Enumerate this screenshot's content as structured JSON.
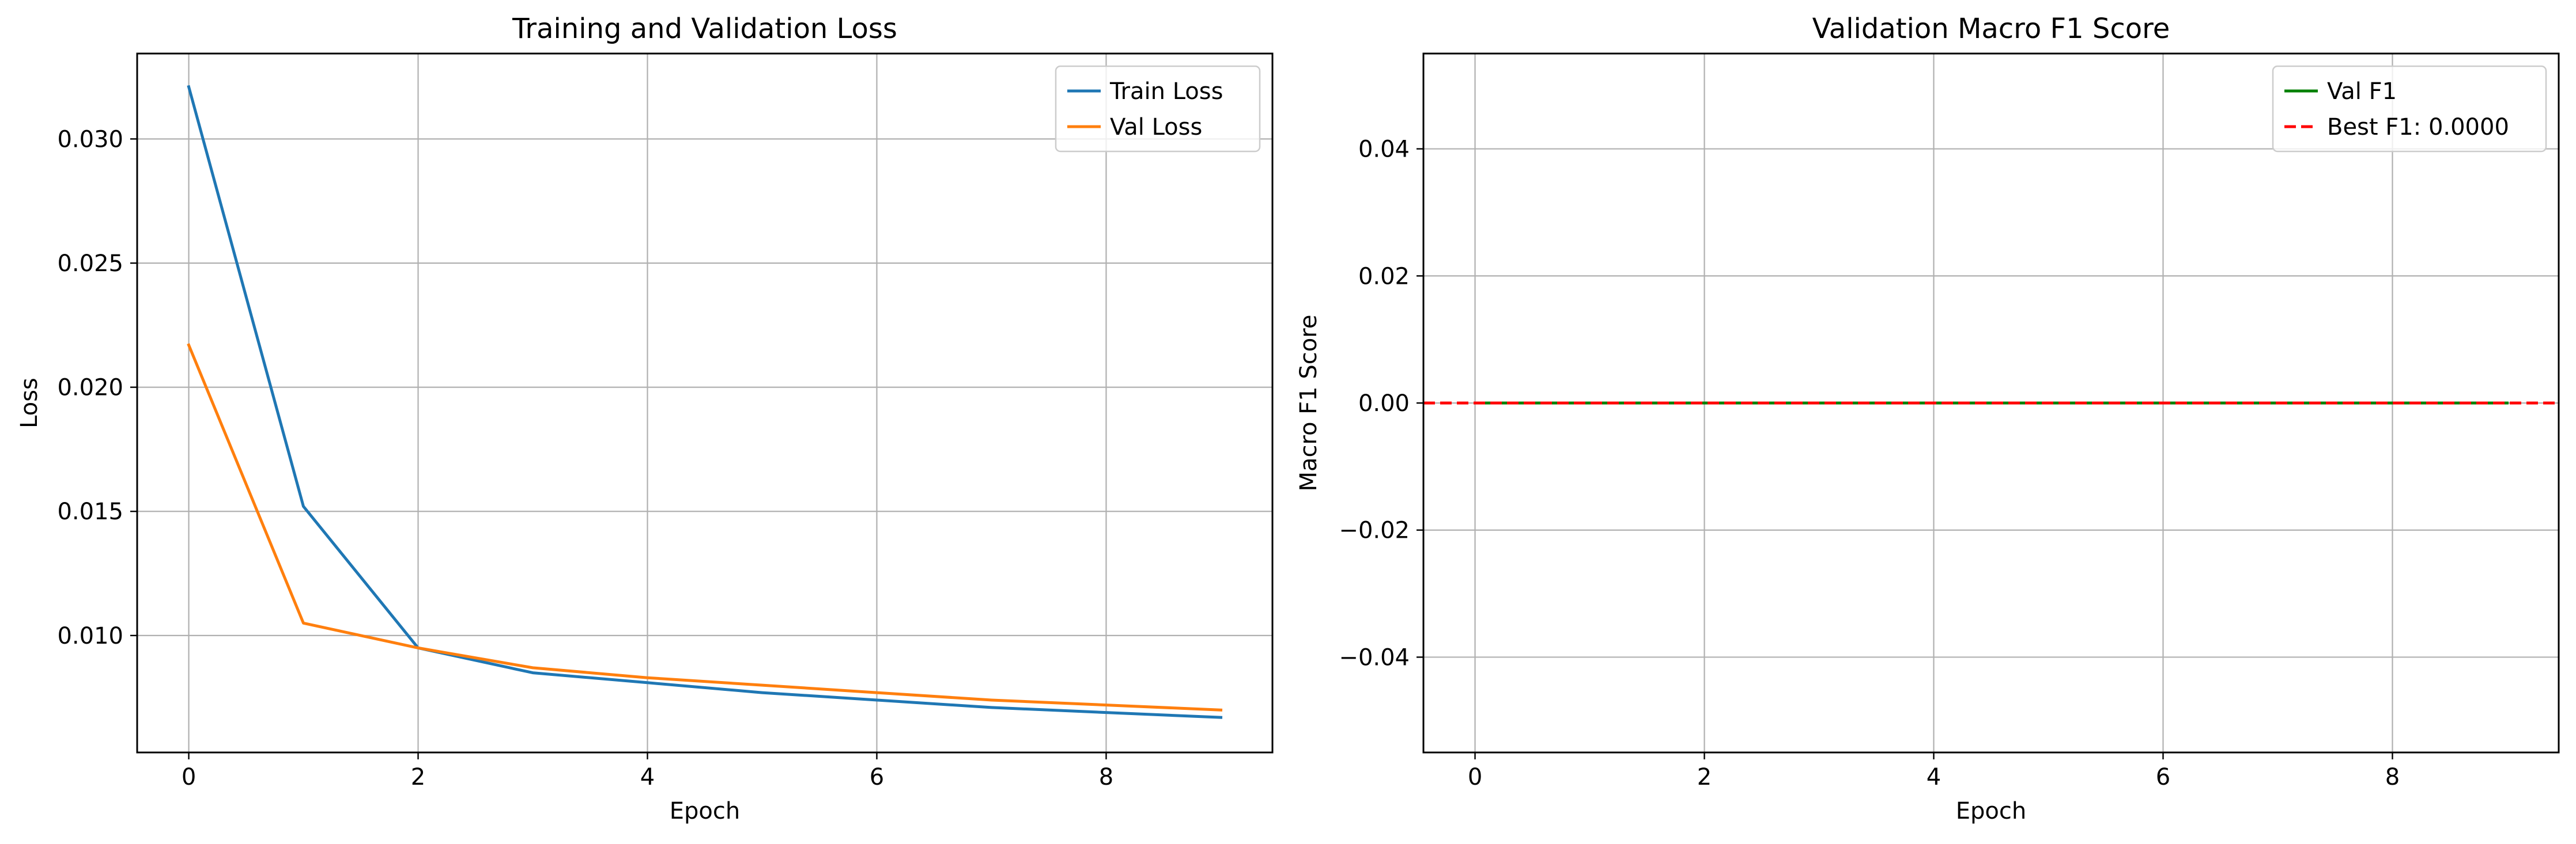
{
  "chart_data": [
    {
      "type": "line",
      "title": "Training and Validation Loss",
      "xlabel": "Epoch",
      "ylabel": "Loss",
      "xlim": [
        -0.45,
        9.45
      ],
      "ylim": [
        0.00529,
        0.03344
      ],
      "xticks": [
        0,
        2,
        4,
        6,
        8
      ],
      "yticks": [
        0.01,
        0.015,
        0.02,
        0.025,
        0.03
      ],
      "ytick_decimals": 3,
      "grid": true,
      "legend_position": "upper-right",
      "x": [
        0,
        1,
        2,
        3,
        4,
        5,
        6,
        7,
        8,
        9
      ],
      "series": [
        {
          "name": "Train Loss",
          "color": "#1f77b4",
          "dash": "solid",
          "values": [
            0.0321,
            0.0152,
            0.0095,
            0.0085,
            0.0081,
            0.0077,
            0.0074,
            0.0071,
            0.0069,
            0.0067
          ]
        },
        {
          "name": "Val Loss",
          "color": "#ff7f0e",
          "dash": "solid",
          "values": [
            0.0217,
            0.0105,
            0.0095,
            0.0087,
            0.0083,
            0.008,
            0.0077,
            0.0074,
            0.0072,
            0.007
          ]
        }
      ]
    },
    {
      "type": "line",
      "title": "Validation Macro F1 Score",
      "xlabel": "Epoch",
      "ylabel": "Macro F1 Score",
      "xlim": [
        -0.45,
        9.45
      ],
      "ylim": [
        -0.055,
        0.055
      ],
      "xticks": [
        0,
        2,
        4,
        6,
        8
      ],
      "yticks": [
        -0.04,
        -0.02,
        0.0,
        0.02,
        0.04
      ],
      "ytick_decimals": 2,
      "grid": true,
      "legend_position": "upper-right",
      "x": [
        0,
        1,
        2,
        3,
        4,
        5,
        6,
        7,
        8,
        9
      ],
      "series": [
        {
          "name": "Val F1",
          "color": "#008000",
          "dash": "solid",
          "values": [
            0,
            0,
            0,
            0,
            0,
            0,
            0,
            0,
            0,
            0
          ]
        }
      ],
      "hlines": [
        {
          "name": "Best F1: 0.0000",
          "color": "#ff0000",
          "dash": "dashed",
          "y": 0.0
        }
      ]
    }
  ]
}
